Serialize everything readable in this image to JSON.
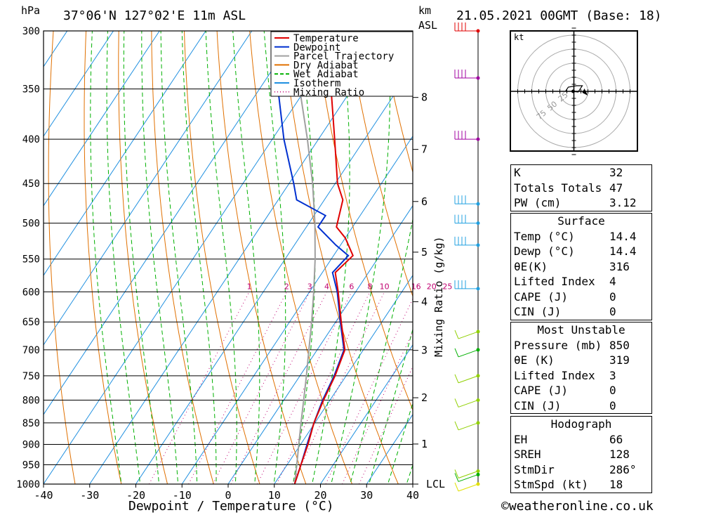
{
  "header": {
    "hpa_label": "hPa",
    "location": "37°06'N  127°02'E  11m  ASL",
    "km_label": "km",
    "asl_label": "ASL",
    "datetime": "21.05.2021  00GMT  (Base: 18)"
  },
  "chart_data": {
    "type": "line",
    "title": "37°06'N  127°02'E  11m  ASL",
    "xlabel": "Dewpoint / Temperature (°C)",
    "ylabel": "hPa",
    "right_axis_label": "Mixing Ratio (g/kg)",
    "x_ticks": [
      -40,
      -30,
      -20,
      -10,
      0,
      10,
      20,
      30,
      40
    ],
    "p_ticks": [
      300,
      350,
      400,
      450,
      500,
      550,
      600,
      650,
      700,
      750,
      800,
      850,
      900,
      950,
      1000
    ],
    "km_ticks": [
      {
        "label": "8",
        "p": 358
      },
      {
        "label": "7",
        "p": 411
      },
      {
        "label": "6",
        "p": 472
      },
      {
        "label": "5",
        "p": 540
      },
      {
        "label": "4",
        "p": 616
      },
      {
        "label": "3",
        "p": 701
      },
      {
        "label": "2",
        "p": 795
      },
      {
        "label": "1",
        "p": 899
      },
      {
        "label": "LCL",
        "p": 1000
      }
    ],
    "mixing_ratio_labels": [
      "1",
      "2",
      "3",
      "4",
      "6",
      "8",
      "10",
      "16",
      "20",
      "25"
    ],
    "mixing_ratio_values": [
      1,
      2,
      3,
      4,
      6,
      8,
      10,
      16,
      20,
      25
    ],
    "xlim": [
      -40,
      40
    ],
    "plim": [
      1000,
      300
    ],
    "skew_deg_per_logp": 54.1,
    "legend": {
      "position": "top-right",
      "entries": [
        {
          "name": "Temperature",
          "color": "#e00000",
          "style": "solid"
        },
        {
          "name": "Dewpoint",
          "color": "#0030d0",
          "style": "solid"
        },
        {
          "name": "Parcel Trajectory",
          "color": "#a0a0a0",
          "style": "solid"
        },
        {
          "name": "Dry Adiabat",
          "color": "#e07000",
          "style": "solid"
        },
        {
          "name": "Wet Adiabat",
          "color": "#00b000",
          "style": "dashed"
        },
        {
          "name": "Isotherm",
          "color": "#2090e0",
          "style": "solid"
        },
        {
          "name": "Mixing Ratio",
          "color": "#c00070",
          "style": "dotted"
        }
      ]
    },
    "series": [
      {
        "name": "Temperature",
        "color": "#e00000",
        "points": [
          {
            "p": 1000,
            "t": 14.4
          },
          {
            "p": 950,
            "t": 13.0
          },
          {
            "p": 900,
            "t": 11.6
          },
          {
            "p": 850,
            "t": 9.8
          },
          {
            "p": 800,
            "t": 8.6
          },
          {
            "p": 750,
            "t": 7.6
          },
          {
            "p": 700,
            "t": 6.0
          },
          {
            "p": 650,
            "t": 1.2
          },
          {
            "p": 600,
            "t": -3.8
          },
          {
            "p": 570,
            "t": -7.2
          },
          {
            "p": 545,
            "t": -5.8
          },
          {
            "p": 520,
            "t": -10.0
          },
          {
            "p": 505,
            "t": -13.5
          },
          {
            "p": 470,
            "t": -16.0
          },
          {
            "p": 450,
            "t": -19.5
          },
          {
            "p": 400,
            "t": -26.5
          },
          {
            "p": 350,
            "t": -34.5
          },
          {
            "p": 330,
            "t": -38.5
          },
          {
            "p": 300,
            "t": -40.5
          }
        ]
      },
      {
        "name": "Dewpoint",
        "color": "#0030d0",
        "points": [
          {
            "p": 1000,
            "t": 14.4
          },
          {
            "p": 950,
            "t": 13.0
          },
          {
            "p": 900,
            "t": 11.4
          },
          {
            "p": 850,
            "t": 9.8
          },
          {
            "p": 800,
            "t": 8.4
          },
          {
            "p": 750,
            "t": 7.4
          },
          {
            "p": 700,
            "t": 5.8
          },
          {
            "p": 650,
            "t": 1.0
          },
          {
            "p": 600,
            "t": -4.0
          },
          {
            "p": 570,
            "t": -7.8
          },
          {
            "p": 545,
            "t": -6.8
          },
          {
            "p": 530,
            "t": -11.0
          },
          {
            "p": 505,
            "t": -17.5
          },
          {
            "p": 490,
            "t": -17.5
          },
          {
            "p": 470,
            "t": -26.0
          },
          {
            "p": 450,
            "t": -29.0
          },
          {
            "p": 400,
            "t": -37.5
          },
          {
            "p": 350,
            "t": -46.0
          },
          {
            "p": 300,
            "t": -53.5
          }
        ]
      },
      {
        "name": "Parcel Trajectory",
        "color": "#a0a0a0",
        "points": [
          {
            "p": 1000,
            "t": 14.4
          },
          {
            "p": 950,
            "t": 12.1
          },
          {
            "p": 900,
            "t": 9.6
          },
          {
            "p": 850,
            "t": 7.0
          },
          {
            "p": 800,
            "t": 4.3
          },
          {
            "p": 750,
            "t": 1.4
          },
          {
            "p": 700,
            "t": -1.8
          },
          {
            "p": 650,
            "t": -5.2
          },
          {
            "p": 600,
            "t": -9.1
          },
          {
            "p": 550,
            "t": -13.5
          },
          {
            "p": 500,
            "t": -18.7
          },
          {
            "p": 450,
            "t": -24.9
          },
          {
            "p": 400,
            "t": -32.4
          },
          {
            "p": 350,
            "t": -41.3
          },
          {
            "p": 300,
            "t": -51.0
          }
        ]
      }
    ]
  },
  "winds": {
    "colors": [
      "#e00000",
      "#a000a0",
      "#20a0e0",
      "#90d000",
      "#00b000"
    ],
    "levels": [
      {
        "p": 300,
        "color": "#e00000"
      },
      {
        "p": 340,
        "color": "#a000a0"
      },
      {
        "p": 400,
        "color": "#a000a0"
      },
      {
        "p": 475,
        "color": "#20a0e0"
      },
      {
        "p": 500,
        "color": "#20a0e0"
      },
      {
        "p": 530,
        "color": "#20a0e0"
      },
      {
        "p": 595,
        "color": "#20a0e0"
      },
      {
        "p": 667,
        "color": "#90d000"
      },
      {
        "p": 700,
        "color": "#00b000"
      },
      {
        "p": 750,
        "color": "#90d000"
      },
      {
        "p": 800,
        "color": "#90d000"
      },
      {
        "p": 850,
        "color": "#90d000"
      },
      {
        "p": 966,
        "color": "#90d000"
      },
      {
        "p": 975,
        "color": "#00b000"
      },
      {
        "p": 1000,
        "color": "#e0e000"
      }
    ]
  },
  "hodograph": {
    "unit_label": "kt",
    "ring_labels": [
      "25",
      "50",
      "75"
    ]
  },
  "indices": {
    "K": {
      "label": "K",
      "value": "32"
    },
    "TT": {
      "label": "Totals Totals",
      "value": "47"
    },
    "PW": {
      "label": "PW (cm)",
      "value": "3.12"
    }
  },
  "surface": {
    "title": "Surface",
    "rows": [
      {
        "label": "Temp (°C)",
        "value": "14.4"
      },
      {
        "label": "Dewp (°C)",
        "value": "14.4"
      },
      {
        "label": "θE(K)",
        "value": "316"
      },
      {
        "label": "Lifted Index",
        "value": "4"
      },
      {
        "label": "CAPE (J)",
        "value": "0"
      },
      {
        "label": "CIN (J)",
        "value": "0"
      }
    ]
  },
  "most_unstable": {
    "title": "Most Unstable",
    "rows": [
      {
        "label": "Pressure (mb)",
        "value": "850"
      },
      {
        "label": "θE (K)",
        "value": "319"
      },
      {
        "label": "Lifted Index",
        "value": "3"
      },
      {
        "label": "CAPE (J)",
        "value": "0"
      },
      {
        "label": "CIN (J)",
        "value": "0"
      }
    ]
  },
  "hodograph_table": {
    "title": "Hodograph",
    "rows": [
      {
        "label": "EH",
        "value": "66"
      },
      {
        "label": "SREH",
        "value": "128"
      },
      {
        "label": "StmDir",
        "value": "286°"
      },
      {
        "label": "StmSpd (kt)",
        "value": "18"
      }
    ]
  },
  "footer": {
    "copyright": "©weatheronline.co.uk"
  }
}
